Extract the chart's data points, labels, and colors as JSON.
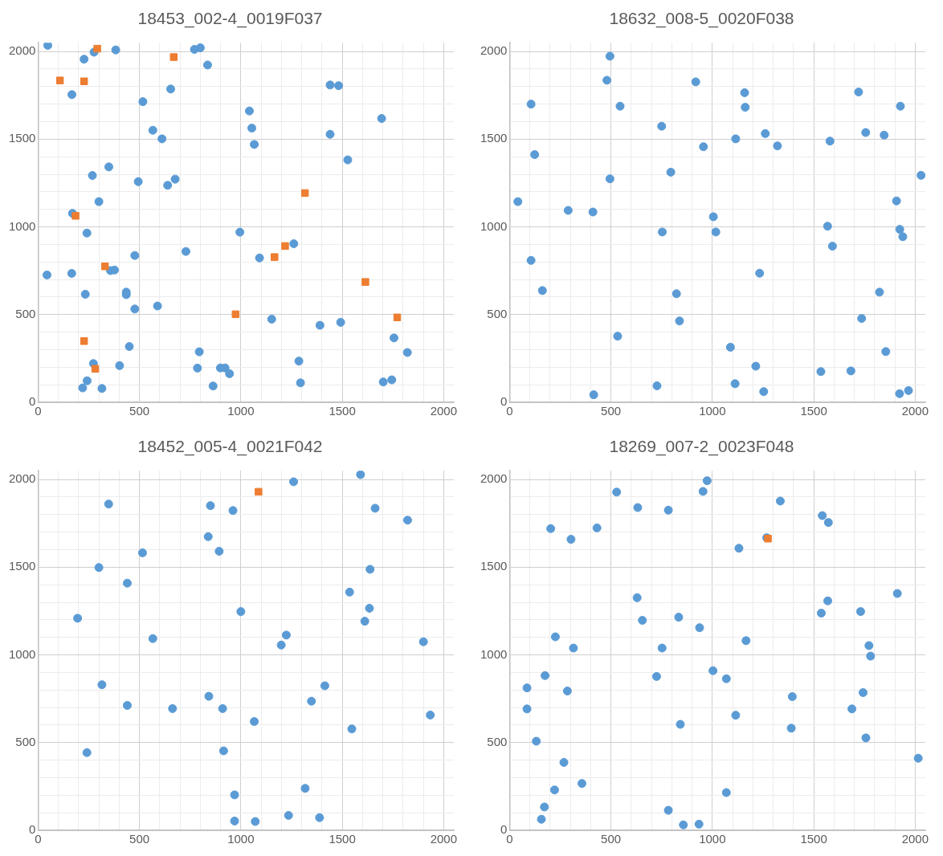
{
  "chart_data": [
    {
      "type": "scatter",
      "title": "18453_002-4_0019F037",
      "xlim": [
        0,
        2050
      ],
      "ylim": [
        0,
        2050
      ],
      "xticks": [
        0,
        {
          "value": 100,
          "label": null
        },
        {
          "value": 200,
          "label": null
        },
        {
          "value": 300,
          "label": null
        },
        {
          "value": 400,
          "label": null
        },
        500,
        {
          "value": 600,
          "label": null
        },
        {
          "value": 700,
          "label": null
        },
        {
          "value": 800,
          "label": null
        },
        {
          "value": 900,
          "label": null
        },
        1000,
        {
          "value": 1100,
          "label": null
        },
        {
          "value": 1200,
          "label": null
        },
        {
          "value": 1300,
          "label": null
        },
        {
          "value": 1400,
          "label": null
        },
        1500,
        {
          "value": 1600,
          "label": null
        },
        {
          "value": 1700,
          "label": null
        },
        {
          "value": 1800,
          "label": null
        },
        {
          "value": 1900,
          "label": null
        },
        2000
      ],
      "yticks": [
        0,
        {
          "value": 100,
          "label": null
        },
        {
          "value": 200,
          "label": null
        },
        {
          "value": 300,
          "label": null
        },
        {
          "value": 400,
          "label": null
        },
        500,
        {
          "value": 600,
          "label": null
        },
        {
          "value": 700,
          "label": null
        },
        {
          "value": 800,
          "label": null
        },
        {
          "value": 900,
          "label": null
        },
        1000,
        {
          "value": 1100,
          "label": null
        },
        {
          "value": 1200,
          "label": null
        },
        {
          "value": 1300,
          "label": null
        },
        {
          "value": 1400,
          "label": null
        },
        1500,
        {
          "value": 1600,
          "label": null
        },
        {
          "value": 1700,
          "label": null
        },
        {
          "value": 1800,
          "label": null
        },
        {
          "value": 1900,
          "label": null
        },
        2000
      ],
      "grid": true,
      "legend": false,
      "series": [
        {
          "color": "#5b9bd5",
          "marker": "circle",
          "x": [
            48,
            276,
            383,
            227,
            771,
            800,
            836,
            167,
            654,
            517,
            1440,
            1482,
            1042,
            1694,
            566,
            1054,
            611,
            1066,
            1440,
            1527,
            349,
            268,
            494,
            639,
            676,
            300,
            170,
            241,
            995,
            1261,
            477,
            729,
            1092,
            44,
            166,
            357,
            377,
            233,
            435,
            435,
            477,
            589,
            1152,
            1390,
            1492,
            1755,
            1821,
            450,
            795,
            1286,
            273,
            402,
            786,
            899,
            922,
            944,
            242,
            220,
            315,
            863,
            1294,
            1702,
            1744
          ],
          "values": [
            2035,
            1996,
            2009,
            1956,
            2012,
            2021,
            1923,
            1754,
            1786,
            1714,
            1809,
            1805,
            1661,
            1618,
            1551,
            1563,
            1502,
            1470,
            1528,
            1382,
            1342,
            1293,
            1258,
            1237,
            1272,
            1144,
            1077,
            965,
            970,
            904,
            837,
            860,
            823,
            726,
            735,
            751,
            754,
            616,
            628,
            614,
            532,
            549,
            474,
            439,
            456,
            367,
            284,
            318,
            288,
            235,
            221,
            209,
            195,
            196,
            196,
            163,
            123,
            82,
            79,
            93,
            111,
            116,
            128
          ]
        },
        {
          "color": "#ed7d31",
          "marker": "square",
          "x": [
            292,
            669,
            108,
            227,
            1316,
            185,
            1218,
            1166,
            330,
            1614,
            974,
            1771,
            227,
            282
          ],
          "values": [
            2016,
            1968,
            1835,
            1830,
            1193,
            1063,
            891,
            828,
            775,
            686,
            502,
            484,
            349,
            191
          ]
        }
      ]
    },
    {
      "type": "scatter",
      "title": "18632_008-5_0020F038",
      "xlim": [
        0,
        2050
      ],
      "ylim": [
        0,
        2050
      ],
      "xticks": [
        0,
        {
          "value": 100,
          "label": null
        },
        {
          "value": 200,
          "label": null
        },
        {
          "value": 300,
          "label": null
        },
        {
          "value": 400,
          "label": null
        },
        500,
        {
          "value": 600,
          "label": null
        },
        {
          "value": 700,
          "label": null
        },
        {
          "value": 800,
          "label": null
        },
        {
          "value": 900,
          "label": null
        },
        1000,
        {
          "value": 1100,
          "label": null
        },
        {
          "value": 1200,
          "label": null
        },
        {
          "value": 1300,
          "label": null
        },
        {
          "value": 1400,
          "label": null
        },
        1500,
        {
          "value": 1600,
          "label": null
        },
        {
          "value": 1700,
          "label": null
        },
        {
          "value": 1800,
          "label": null
        },
        {
          "value": 1900,
          "label": null
        },
        2000
      ],
      "yticks": [
        0,
        {
          "value": 100,
          "label": null
        },
        {
          "value": 200,
          "label": null
        },
        {
          "value": 300,
          "label": null
        },
        {
          "value": 400,
          "label": null
        },
        500,
        {
          "value": 600,
          "label": null
        },
        {
          "value": 700,
          "label": null
        },
        {
          "value": 800,
          "label": null
        },
        {
          "value": 900,
          "label": null
        },
        1000,
        {
          "value": 1100,
          "label": null
        },
        {
          "value": 1200,
          "label": null
        },
        {
          "value": 1300,
          "label": null
        },
        {
          "value": 1400,
          "label": null
        },
        1500,
        {
          "value": 1600,
          "label": null
        },
        {
          "value": 1700,
          "label": null
        },
        {
          "value": 1800,
          "label": null
        },
        {
          "value": 1900,
          "label": null
        },
        2000
      ],
      "grid": true,
      "legend": false,
      "series": [
        {
          "color": "#5b9bd5",
          "marker": "circle",
          "x": [
            495,
            480,
            918,
            106,
            545,
            1159,
            1162,
            1721,
            1927,
            750,
            1261,
            1115,
            956,
            1321,
            1580,
            1756,
            1847,
            124,
            795,
            495,
            2029,
            41,
            289,
            411,
            1005,
            1908,
            753,
            1017,
            1568,
            1924,
            1939,
            1592,
            106,
            162,
            1233,
            823,
            1824,
            838,
            1736,
            533,
            1089,
            1855,
            1214,
            1535,
            1683,
            727,
            1112,
            1253,
            415,
            1923,
            1967
          ],
          "values": [
            1973,
            1836,
            1827,
            1700,
            1688,
            1765,
            1682,
            1769,
            1688,
            1574,
            1532,
            1502,
            1457,
            1462,
            1489,
            1538,
            1523,
            1412,
            1312,
            1274,
            1294,
            1144,
            1094,
            1085,
            1058,
            1148,
            971,
            971,
            1004,
            986,
            944,
            890,
            809,
            637,
            736,
            619,
            628,
            464,
            478,
            377,
            314,
            289,
            206,
            175,
            179,
            94,
            106,
            61,
            43,
            49,
            67
          ]
        }
      ]
    },
    {
      "type": "scatter",
      "title": "18452_005-4_0021F042",
      "xlim": [
        0,
        2050
      ],
      "ylim": [
        0,
        2050
      ],
      "xticks": [
        0,
        {
          "value": 100,
          "label": null
        },
        {
          "value": 200,
          "label": null
        },
        {
          "value": 300,
          "label": null
        },
        {
          "value": 400,
          "label": null
        },
        500,
        {
          "value": 600,
          "label": null
        },
        {
          "value": 700,
          "label": null
        },
        {
          "value": 800,
          "label": null
        },
        {
          "value": 900,
          "label": null
        },
        1000,
        {
          "value": 1100,
          "label": null
        },
        {
          "value": 1200,
          "label": null
        },
        {
          "value": 1300,
          "label": null
        },
        {
          "value": 1400,
          "label": null
        },
        1500,
        {
          "value": 1600,
          "label": null
        },
        {
          "value": 1700,
          "label": null
        },
        {
          "value": 1800,
          "label": null
        },
        {
          "value": 1900,
          "label": null
        },
        2000
      ],
      "yticks": [
        0,
        {
          "value": 100,
          "label": null
        },
        {
          "value": 200,
          "label": null
        },
        {
          "value": 300,
          "label": null
        },
        {
          "value": 400,
          "label": null
        },
        500,
        {
          "value": 600,
          "label": null
        },
        {
          "value": 700,
          "label": null
        },
        {
          "value": 800,
          "label": null
        },
        {
          "value": 900,
          "label": null
        },
        1000,
        {
          "value": 1100,
          "label": null
        },
        {
          "value": 1200,
          "label": null
        },
        {
          "value": 1300,
          "label": null
        },
        {
          "value": 1400,
          "label": null
        },
        1500,
        {
          "value": 1600,
          "label": null
        },
        {
          "value": 1700,
          "label": null
        },
        {
          "value": 1800,
          "label": null
        },
        {
          "value": 1900,
          "label": null
        },
        2000
      ],
      "grid": true,
      "legend": false,
      "series": [
        {
          "color": "#5b9bd5",
          "marker": "circle",
          "x": [
            1590,
            1260,
            348,
            850,
            961,
            1662,
            1822,
            839,
            893,
            515,
            300,
            1637,
            440,
            1536,
            1000,
            1634,
            1611,
            195,
            566,
            1224,
            1199,
            1900,
            315,
            1414,
            842,
            440,
            663,
            910,
            1348,
            1066,
            1934,
            1547,
            241,
            915,
            1317,
            969,
            1235,
            1388,
            969,
            1071
          ],
          "values": [
            2028,
            1987,
            1860,
            1851,
            1823,
            1836,
            1768,
            1674,
            1591,
            1582,
            1498,
            1488,
            1409,
            1358,
            1247,
            1266,
            1192,
            1209,
            1093,
            1113,
            1056,
            1075,
            830,
            824,
            764,
            712,
            694,
            694,
            736,
            620,
            657,
            578,
            443,
            453,
            239,
            202,
            85,
            72,
            53,
            50
          ]
        },
        {
          "color": "#ed7d31",
          "marker": "square",
          "x": [
            1087
          ],
          "values": [
            1930
          ]
        }
      ]
    },
    {
      "type": "scatter",
      "title": "18269_007-2_0023F048",
      "xlim": [
        0,
        2050
      ],
      "ylim": [
        0,
        2050
      ],
      "xticks": [
        0,
        {
          "value": 100,
          "label": null
        },
        {
          "value": 200,
          "label": null
        },
        {
          "value": 300,
          "label": null
        },
        {
          "value": 400,
          "label": null
        },
        500,
        {
          "value": 600,
          "label": null
        },
        {
          "value": 700,
          "label": null
        },
        {
          "value": 800,
          "label": null
        },
        {
          "value": 900,
          "label": null
        },
        1000,
        {
          "value": 1100,
          "label": null
        },
        {
          "value": 1200,
          "label": null
        },
        {
          "value": 1300,
          "label": null
        },
        {
          "value": 1400,
          "label": null
        },
        1500,
        {
          "value": 1600,
          "label": null
        },
        {
          "value": 1700,
          "label": null
        },
        {
          "value": 1800,
          "label": null
        },
        {
          "value": 1900,
          "label": null
        },
        2000
      ],
      "yticks": [
        0,
        {
          "value": 100,
          "label": null
        },
        {
          "value": 200,
          "label": null
        },
        {
          "value": 300,
          "label": null
        },
        {
          "value": 400,
          "label": null
        },
        500,
        {
          "value": 600,
          "label": null
        },
        {
          "value": 700,
          "label": null
        },
        {
          "value": 800,
          "label": null
        },
        {
          "value": 900,
          "label": null
        },
        1000,
        {
          "value": 1100,
          "label": null
        },
        {
          "value": 1200,
          "label": null
        },
        {
          "value": 1300,
          "label": null
        },
        {
          "value": 1400,
          "label": null
        },
        1500,
        {
          "value": 1600,
          "label": null
        },
        {
          "value": 1700,
          "label": null
        },
        {
          "value": 1800,
          "label": null
        },
        {
          "value": 1900,
          "label": null
        },
        2000
      ],
      "grid": true,
      "legend": false,
      "series": [
        {
          "color": "#5b9bd5",
          "marker": "circle",
          "x": [
            974,
            528,
            954,
            1335,
            632,
            783,
            1542,
            1572,
            203,
            431,
            303,
            1131,
            1268,
            629,
            1912,
            1569,
            1537,
            1731,
            655,
            834,
            937,
            226,
            315,
            752,
            1166,
            1772,
            1780,
            1003,
            1069,
            725,
            175,
            86,
            285,
            86,
            1394,
            1743,
            1688,
            1115,
            842,
            1389,
            1757,
            132,
            2015,
            268,
            357,
            222,
            1069,
            172,
            157,
            783,
            857,
            934
          ],
          "values": [
            1993,
            1928,
            1932,
            1877,
            1840,
            1825,
            1794,
            1755,
            1720,
            1724,
            1659,
            1608,
            1668,
            1326,
            1350,
            1308,
            1238,
            1247,
            1197,
            1215,
            1155,
            1103,
            1039,
            1039,
            1081,
            1053,
            993,
            910,
            864,
            877,
            882,
            812,
            794,
            692,
            762,
            785,
            692,
            656,
            604,
            582,
            527,
            508,
            411,
            387,
            267,
            230,
            215,
            133,
            63,
            114,
            31,
            35
          ]
        },
        {
          "color": "#ed7d31",
          "marker": "square",
          "x": [
            1274
          ],
          "values": [
            1663
          ]
        }
      ]
    }
  ]
}
